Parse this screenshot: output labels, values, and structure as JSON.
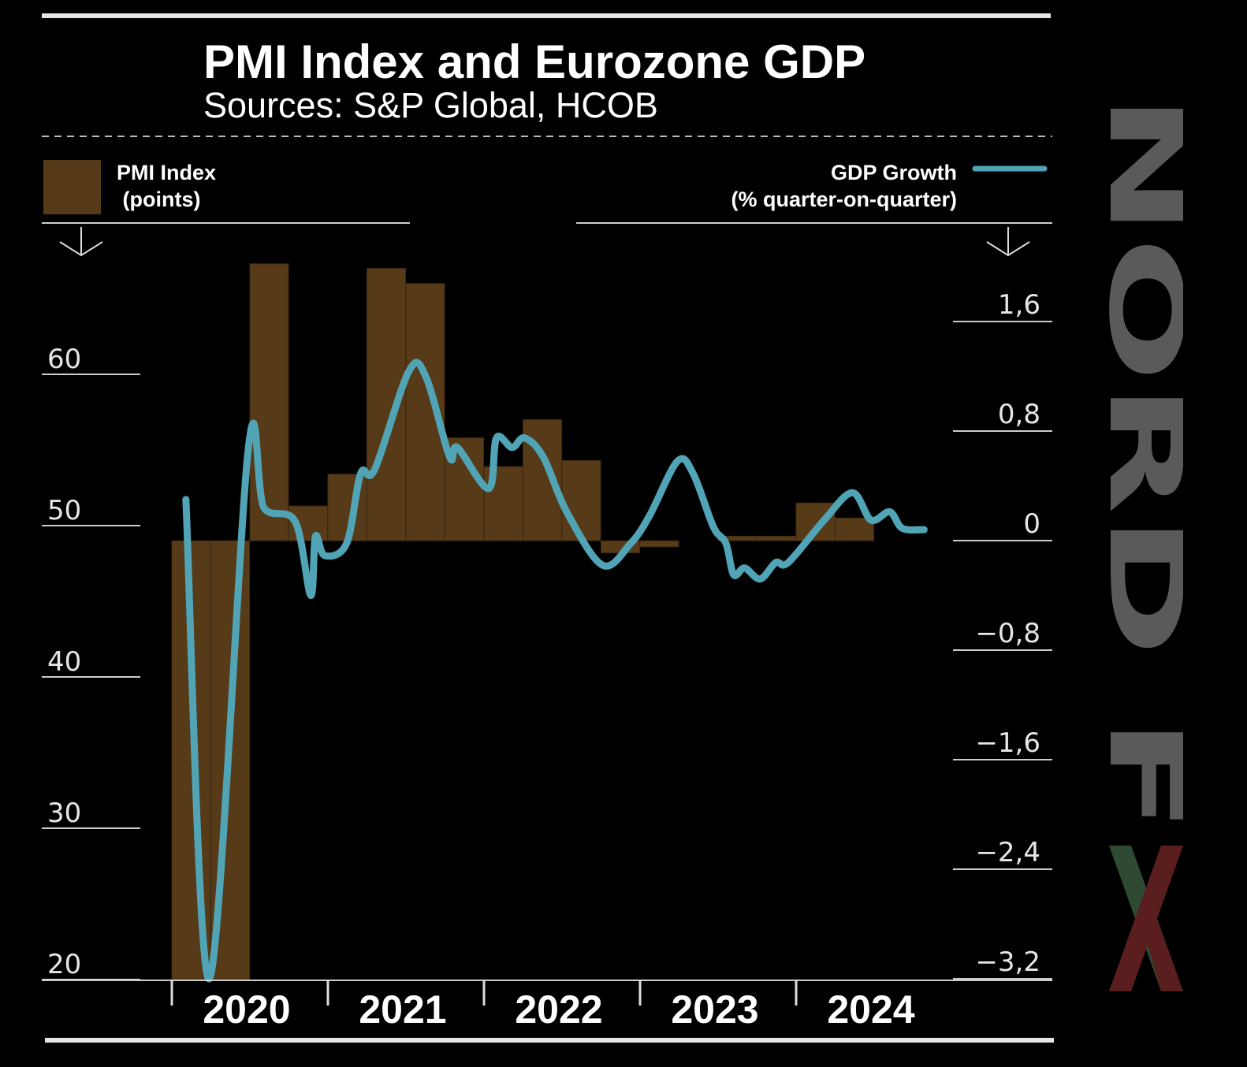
{
  "title": "PMI Index and Eurozone GDP",
  "subtitle": "Sources: S&P Global, HCOB",
  "legend": {
    "left": {
      "line1": "PMI Index",
      "line2": " (points)"
    },
    "right": {
      "line1": "GDP Growth",
      "line2": "(% quarter-on-quarter)"
    }
  },
  "logo": {
    "text": "NORD FX",
    "color": "#5a5a5a",
    "x_colors": [
      "#2f4a33",
      "#5a1e1e"
    ]
  },
  "colors": {
    "bars": "#573a17",
    "line": "#50a4b6",
    "background": "#000000",
    "axis": "#e6e6e6"
  },
  "chart_data": {
    "type": "bar+line",
    "title": "PMI Index and Eurozone GDP",
    "subtitle": "Sources: S&P Global, HCOB",
    "x_ticks": [
      "2020",
      "2021",
      "2022",
      "2023",
      "2024"
    ],
    "xlim": [
      2019.9,
      2025.3
    ],
    "left_axis": {
      "label": "PMI Index (points)",
      "ticks": [
        "20",
        "30",
        "40",
        "50",
        "60"
      ],
      "tick_values": [
        20,
        30,
        40,
        50,
        60
      ],
      "ylim": [
        20,
        68
      ]
    },
    "right_axis": {
      "label": "GDP Growth (% quarter-on-quarter)",
      "ticks": [
        "−3,2",
        "−2,4",
        "−1,6",
        "−0,8",
        "0",
        "0,8",
        "1,6"
      ],
      "tick_values": [
        -3.2,
        -2.4,
        -1.6,
        -0.8,
        0,
        0.8,
        1.6
      ],
      "ylim": [
        -3.2,
        2.0
      ]
    },
    "grid": false,
    "legend": "top",
    "series": [
      {
        "name": "PMI Index",
        "type": "bar",
        "axis": "left",
        "categories": [
          "2020Q1",
          "2020Q2",
          "2020Q3",
          "2020Q4",
          "2021Q1",
          "2021Q2",
          "2021Q3",
          "2021Q4",
          "2022Q1",
          "2022Q2",
          "2022Q3",
          "2022Q4",
          "2023Q1",
          "2023Q2",
          "2023Q3",
          "2023Q4",
          "2024Q1",
          "2024Q2"
        ],
        "values": [
          20,
          20,
          67.3,
          51.3,
          53.4,
          67.0,
          66.0,
          55.8,
          53.9,
          57.0,
          54.3,
          48.2,
          48.6,
          49.0,
          49.3,
          49.3,
          51.5,
          50.5
        ]
      },
      {
        "name": "GDP Growth",
        "type": "line",
        "axis": "right",
        "x": [
          2020.09,
          2020.24,
          2020.49,
          2020.59,
          2020.79,
          2020.89,
          2020.92,
          2020.98,
          2021.12,
          2021.21,
          2021.3,
          2021.52,
          2021.63,
          2021.78,
          2021.83,
          2022.03,
          2022.08,
          2022.18,
          2022.26,
          2022.38,
          2022.53,
          2022.76,
          2022.94,
          2023.06,
          2023.24,
          2023.34,
          2023.47,
          2023.55,
          2023.6,
          2023.67,
          2023.77,
          2023.87,
          2023.95,
          2024.18,
          2024.36,
          2024.48,
          2024.6,
          2024.68,
          2024.82
        ],
        "values": [
          0.3,
          -3.2,
          0.67,
          0.24,
          0.14,
          -0.4,
          0.03,
          -0.11,
          -0.02,
          0.49,
          0.52,
          1.24,
          1.19,
          0.61,
          0.68,
          0.38,
          0.75,
          0.68,
          0.75,
          0.61,
          0.21,
          -0.18,
          -0.02,
          0.18,
          0.58,
          0.49,
          0.1,
          -0.02,
          -0.25,
          -0.2,
          -0.28,
          -0.16,
          -0.16,
          0.15,
          0.35,
          0.15,
          0.21,
          0.09,
          0.08
        ]
      }
    ]
  }
}
